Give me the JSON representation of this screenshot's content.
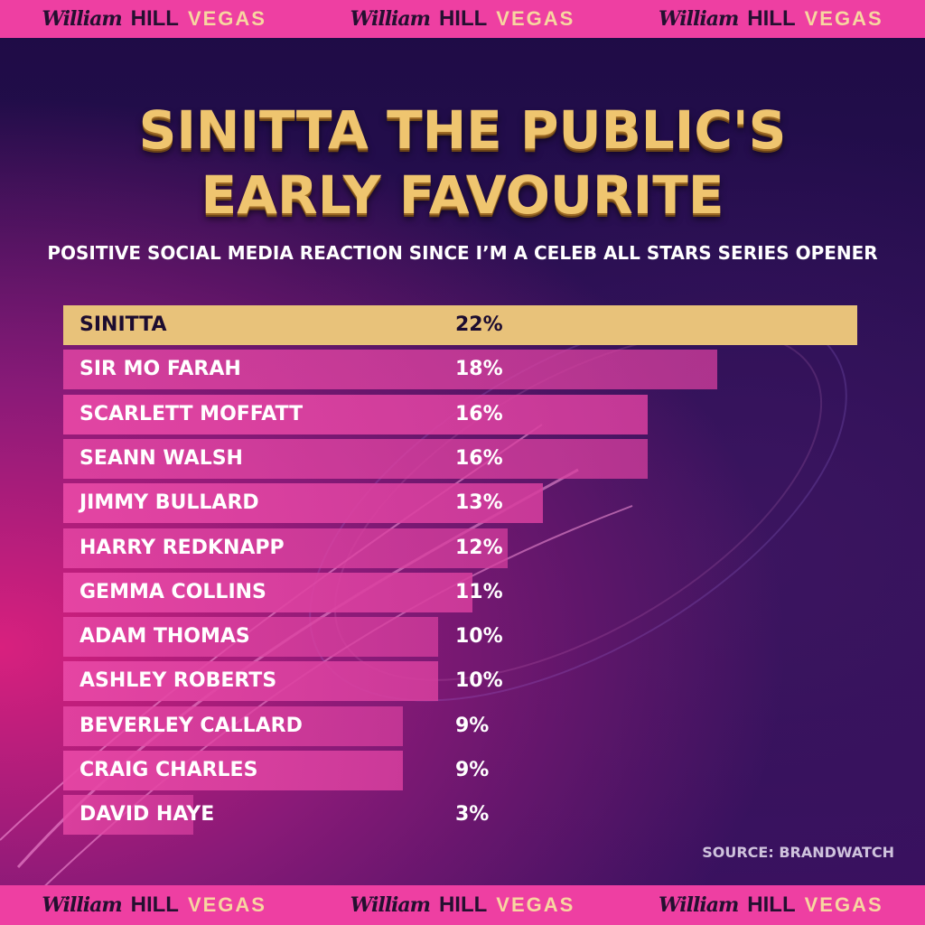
{
  "brand": {
    "script_text": "William",
    "bold_text": "HILL",
    "vegas_text": "VEGAS"
  },
  "colors": {
    "strip": "#ee3fa2",
    "top_bar": "#e8c27a",
    "bar": "#e0449e",
    "title_gold": "#efc56f"
  },
  "chart_data": {
    "type": "bar",
    "orientation": "horizontal",
    "title": "SINITTA THE PUBLIC'S EARLY FAVOURITE",
    "title_lines": [
      "SINITTA THE PUBLIC'S",
      "EARLY FAVOURITE"
    ],
    "subtitle": "POSITIVE SOCIAL MEDIA REACTION SINCE I’M A CELEB ALL STARS SERIES OPENER",
    "categories": [
      "SINITTA",
      "SIR MO FARAH",
      "SCARLETT MOFFATT",
      "SEANN WALSH",
      "JIMMY BULLARD",
      "HARRY REDKNAPP",
      "GEMMA COLLINS",
      "ADAM THOMAS",
      "ASHLEY ROBERTS",
      "BEVERLEY CALLARD",
      "CRAIG CHARLES",
      "DAVID HAYE"
    ],
    "values": [
      22,
      18,
      16,
      16,
      13,
      12,
      11,
      10,
      10,
      9,
      9,
      3
    ],
    "value_labels": [
      "22%",
      "18%",
      "16%",
      "16%",
      "13%",
      "12%",
      "11%",
      "10%",
      "10%",
      "9%",
      "9%",
      "3%"
    ],
    "highlight_index": 0,
    "source": "SOURCE: BRANDWATCH"
  }
}
